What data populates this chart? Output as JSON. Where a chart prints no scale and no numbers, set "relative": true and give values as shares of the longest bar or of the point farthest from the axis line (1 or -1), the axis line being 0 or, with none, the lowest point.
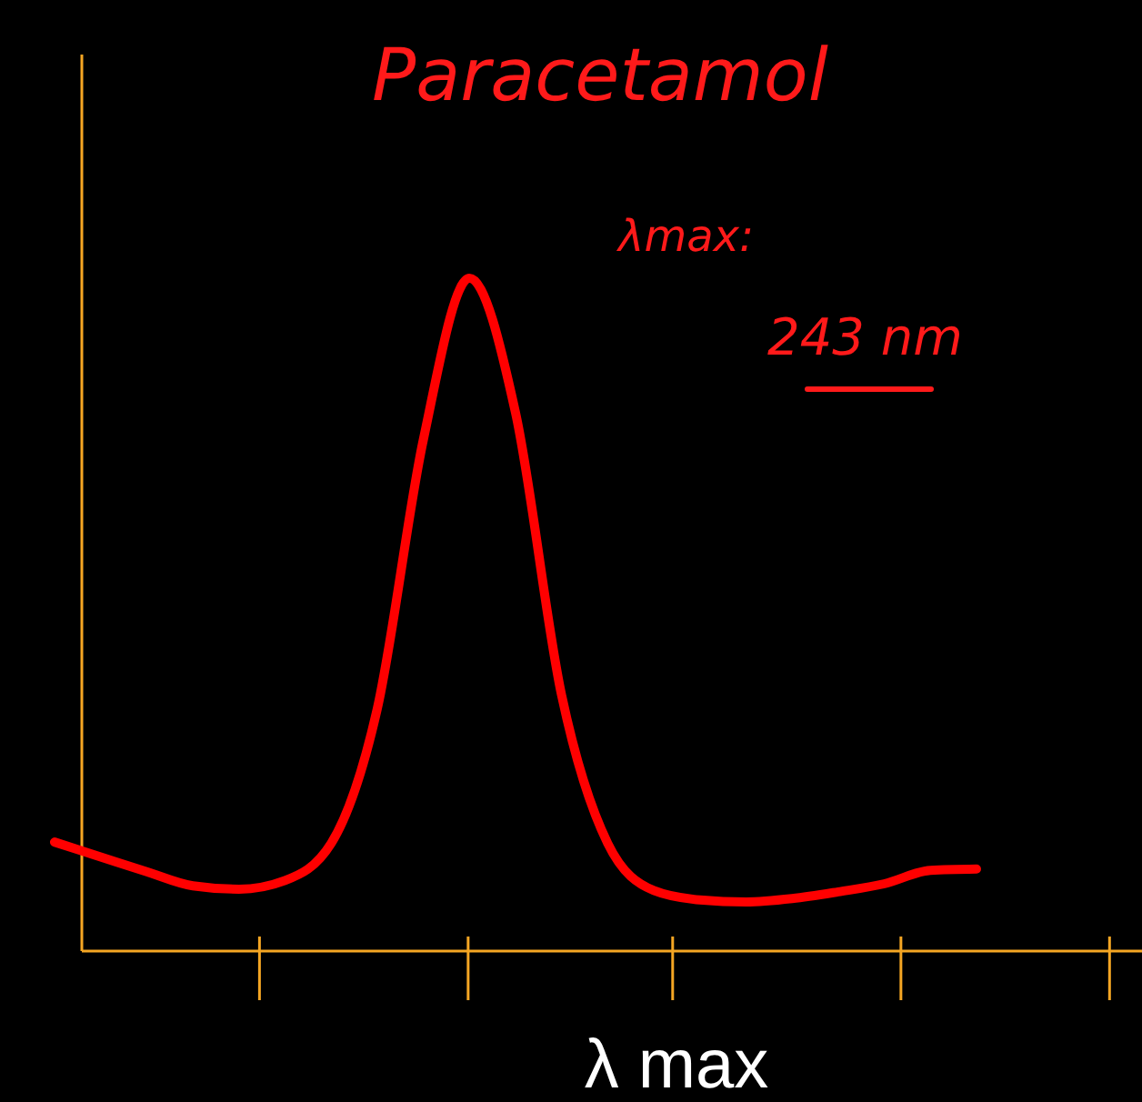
{
  "chart_data": {
    "type": "line",
    "title": "Paracetamol",
    "xlabel": "λ max",
    "annotations": [
      "λmax:",
      "243 nm"
    ],
    "relative": true,
    "categories": [
      null,
      null,
      null,
      null,
      null,
      null,
      null,
      null,
      null,
      null,
      null,
      null,
      null,
      null,
      null,
      null,
      null,
      null,
      null,
      null,
      null
    ],
    "series": [
      {
        "color": "#ff0000",
        "values": [
          0.162,
          0.14,
          0.118,
          0.097,
          0.092,
          0.105,
          0.16,
          0.36,
          0.76,
          1,
          0.8,
          0.38,
          0.16,
          0.09,
          0.076,
          0.073,
          0.078,
          0.088,
          0.1,
          0.12,
          0.122
        ]
      }
    ],
    "marker": "none",
    "line_style": "solid"
  }
}
